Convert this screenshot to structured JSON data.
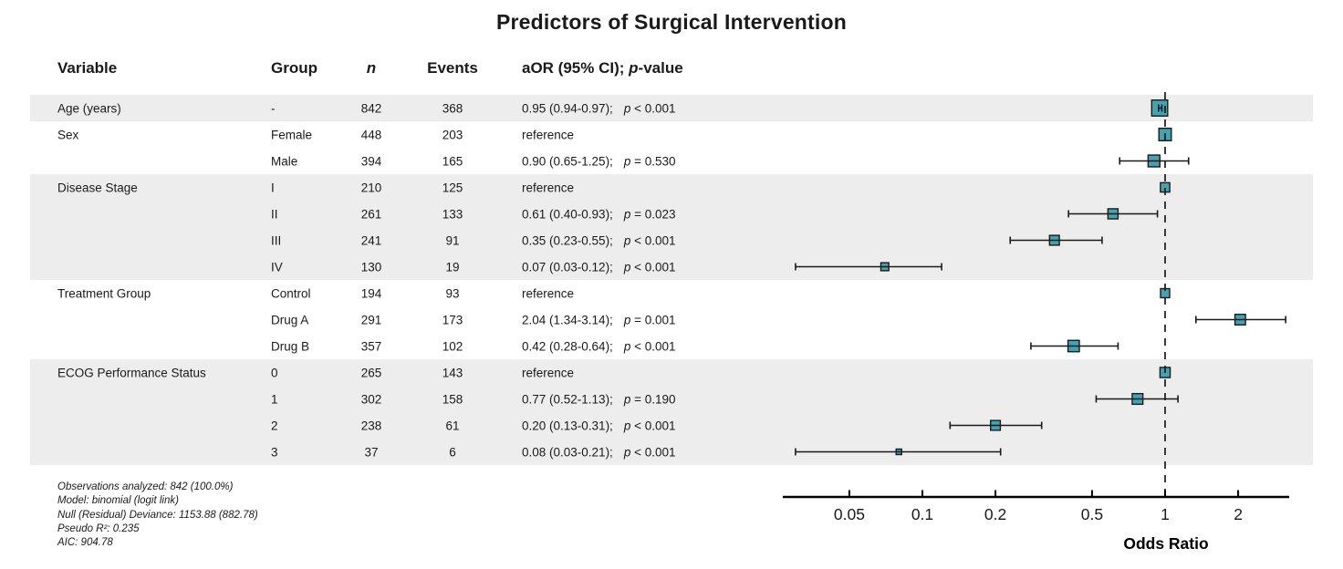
{
  "title": "Predictors of Surgical Intervention",
  "table": {
    "headers": {
      "variable": "Variable",
      "group": "Group",
      "n": "n",
      "events": "Events",
      "aor_prefix": "aOR (95% CI); ",
      "aor_p": "p",
      "aor_suffix": "-value"
    }
  },
  "footnotes": [
    "Observations analyzed: 842 (100.0%)",
    "Model: binomial (logit link)",
    "Null (Residual) Deviance: 1153.88 (882.78)",
    "Pseudo R²: 0.235",
    "AIC: 904.78"
  ],
  "chart_data": {
    "type": "forest",
    "title": "Predictors of Surgical Intervention",
    "xlabel": "Odds Ratio",
    "x_scale": "log",
    "x_ticks": [
      0.05,
      0.1,
      0.2,
      0.5,
      1,
      2
    ],
    "xlim": [
      0.027,
      3.3
    ],
    "reference_line": 1,
    "marker_color": "#44A3B3",
    "marker_border": "#1a1a1a",
    "band_color": "#EDEDED",
    "rows": [
      {
        "variable": "Age (years)",
        "group": "-",
        "n": 842,
        "events": 368,
        "est": "0.95 (0.94-0.97);",
        "p": "< 0.001",
        "or": 0.95,
        "lo": 0.94,
        "hi": 0.97,
        "ref": false,
        "shaded": true
      },
      {
        "variable": "Sex",
        "group": "Female",
        "n": 448,
        "events": 203,
        "est": "reference",
        "p": null,
        "or": 1,
        "lo": null,
        "hi": null,
        "ref": true,
        "shaded": false
      },
      {
        "variable": "",
        "group": "Male",
        "n": 394,
        "events": 165,
        "est": "0.90 (0.65-1.25);",
        "p": "= 0.530",
        "or": 0.9,
        "lo": 0.65,
        "hi": 1.25,
        "ref": false,
        "shaded": false
      },
      {
        "variable": "Disease Stage",
        "group": "I",
        "n": 210,
        "events": 125,
        "est": "reference",
        "p": null,
        "or": 1,
        "lo": null,
        "hi": null,
        "ref": true,
        "shaded": true
      },
      {
        "variable": "",
        "group": "II",
        "n": 261,
        "events": 133,
        "est": "0.61 (0.40-0.93);",
        "p": "= 0.023",
        "or": 0.61,
        "lo": 0.4,
        "hi": 0.93,
        "ref": false,
        "shaded": true
      },
      {
        "variable": "",
        "group": "III",
        "n": 241,
        "events": 91,
        "est": "0.35 (0.23-0.55);",
        "p": "< 0.001",
        "or": 0.35,
        "lo": 0.23,
        "hi": 0.55,
        "ref": false,
        "shaded": true
      },
      {
        "variable": "",
        "group": "IV",
        "n": 130,
        "events": 19,
        "est": "0.07 (0.03-0.12);",
        "p": "< 0.001",
        "or": 0.07,
        "lo": 0.03,
        "hi": 0.12,
        "ref": false,
        "shaded": true
      },
      {
        "variable": "Treatment Group",
        "group": "Control",
        "n": 194,
        "events": 93,
        "est": "reference",
        "p": null,
        "or": 1,
        "lo": null,
        "hi": null,
        "ref": true,
        "shaded": false
      },
      {
        "variable": "",
        "group": "Drug A",
        "n": 291,
        "events": 173,
        "est": "2.04 (1.34-3.14);",
        "p": "= 0.001",
        "or": 2.04,
        "lo": 1.34,
        "hi": 3.14,
        "ref": false,
        "shaded": false
      },
      {
        "variable": "",
        "group": "Drug B",
        "n": 357,
        "events": 102,
        "est": "0.42 (0.28-0.64);",
        "p": "< 0.001",
        "or": 0.42,
        "lo": 0.28,
        "hi": 0.64,
        "ref": false,
        "shaded": false
      },
      {
        "variable": "ECOG Performance Status",
        "group": "0",
        "n": 265,
        "events": 143,
        "est": "reference",
        "p": null,
        "or": 1,
        "lo": null,
        "hi": null,
        "ref": true,
        "shaded": true
      },
      {
        "variable": "",
        "group": "1",
        "n": 302,
        "events": 158,
        "est": "0.77 (0.52-1.13);",
        "p": "= 0.190",
        "or": 0.77,
        "lo": 0.52,
        "hi": 1.13,
        "ref": false,
        "shaded": true
      },
      {
        "variable": "",
        "group": "2",
        "n": 238,
        "events": 61,
        "est": "0.20 (0.13-0.31);",
        "p": "< 0.001",
        "or": 0.2,
        "lo": 0.13,
        "hi": 0.31,
        "ref": false,
        "shaded": true
      },
      {
        "variable": "",
        "group": "3",
        "n": 37,
        "events": 6,
        "est": "0.08 (0.03-0.21);",
        "p": "< 0.001",
        "or": 0.08,
        "lo": 0.03,
        "hi": 0.21,
        "ref": false,
        "shaded": true
      }
    ]
  }
}
